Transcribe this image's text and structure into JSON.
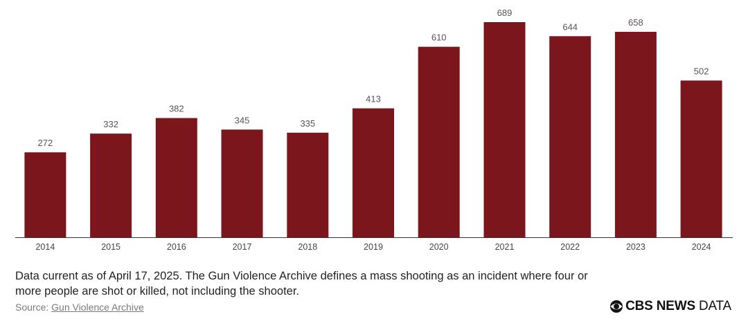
{
  "chart_data": {
    "type": "bar",
    "categories": [
      "2014",
      "2015",
      "2016",
      "2017",
      "2018",
      "2019",
      "2020",
      "2021",
      "2022",
      "2023",
      "2024"
    ],
    "values": [
      272,
      332,
      382,
      345,
      335,
      413,
      610,
      689,
      644,
      658,
      502
    ],
    "data_labels": [
      "272",
      "332",
      "382",
      "345",
      "335",
      "413",
      "610",
      "689",
      "644",
      "658",
      "502"
    ],
    "bar_color": "#7b171c",
    "ylim": [
      0,
      700
    ],
    "grid": false,
    "legend": "none"
  },
  "footnote": "Data current as of April 17, 2025. The Gun Violence Archive defines a mass shooting as an incident where four or more people are shot or killed, not including the shooter.",
  "source": {
    "prefix": "Source: ",
    "link_text": "Gun Violence Archive"
  },
  "logo": {
    "brand": "CBS NEWS",
    "suffix": "DATA",
    "icon": "cbs-eye-icon"
  }
}
